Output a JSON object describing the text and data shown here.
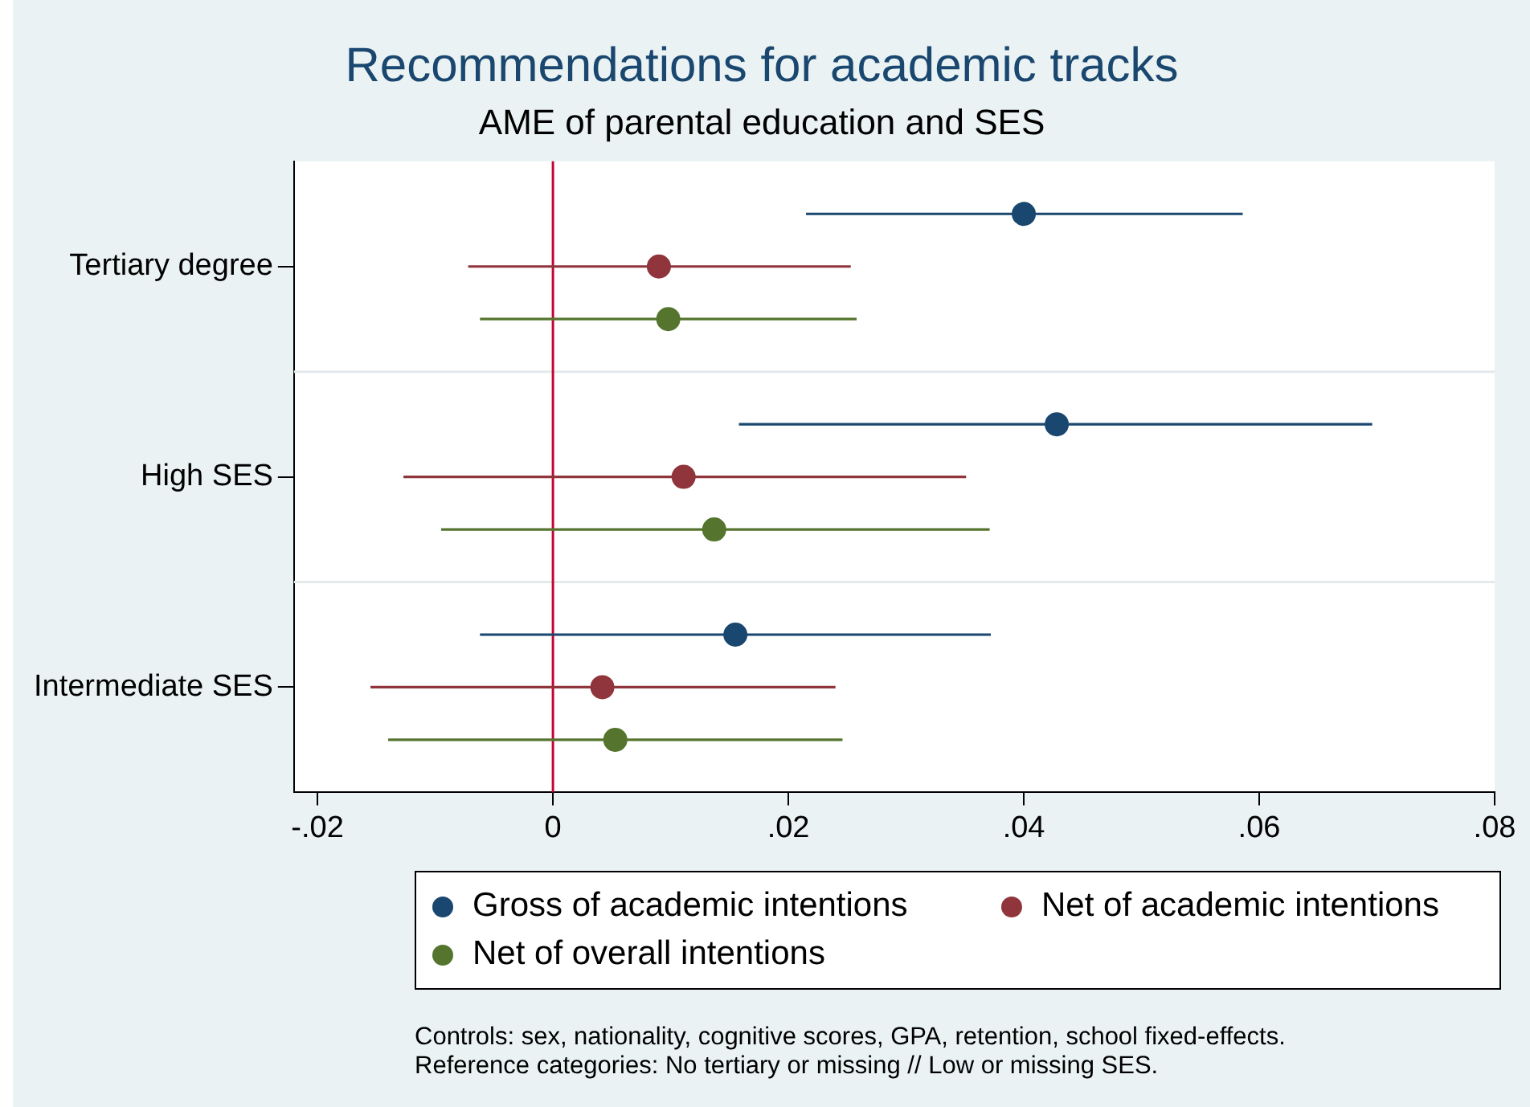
{
  "chart_data": {
    "type": "scatter",
    "orientation": "horizontal",
    "title": "Recommendations for academic tracks",
    "subtitle": "AME of parental education and SES",
    "categories": [
      "Tertiary degree",
      "High SES",
      "Intermediate SES"
    ],
    "series": [
      {
        "name": "Gross of academic intentions",
        "color": "#1a476f",
        "values": [
          0.04,
          0.0428,
          0.0155
        ],
        "errors": [
          [
            0.0215,
            0.0586
          ],
          [
            0.0158,
            0.0696
          ],
          [
            -0.0062,
            0.0372
          ]
        ]
      },
      {
        "name": "Net of academic intentions",
        "color": "#90353b",
        "values": [
          0.009,
          0.0111,
          0.0042
        ],
        "errors": [
          [
            -0.0072,
            0.0253
          ],
          [
            -0.0127,
            0.0351
          ],
          [
            -0.0155,
            0.024
          ]
        ]
      },
      {
        "name": "Net of overall intentions",
        "color": "#55752f",
        "values": [
          0.0098,
          0.0137,
          0.0053
        ],
        "errors": [
          [
            -0.0062,
            0.0258
          ],
          [
            -0.0095,
            0.0371
          ],
          [
            -0.014,
            0.0246
          ]
        ]
      }
    ],
    "xlim": [
      -0.022,
      0.08
    ],
    "xticks": [
      {
        "value": -0.02,
        "label": "-.02"
      },
      0,
      {
        "value": 0.02,
        "label": ".02"
      },
      {
        "value": 0.04,
        "label": ".04"
      },
      {
        "value": 0.06,
        "label": ".06"
      },
      {
        "value": 0.08,
        "label": ".08"
      }
    ],
    "ref_lines": [
      {
        "axis": "x",
        "value": 0,
        "color": "#c10534"
      }
    ],
    "grid": "y",
    "legend": "bottom",
    "marker": "circle",
    "annotations": [
      "Controls: sex, nationality, cognitive scores, GPA, retention, school fixed-effects.",
      "Reference categories: No tertiary or missing // Low or missing SES."
    ]
  }
}
